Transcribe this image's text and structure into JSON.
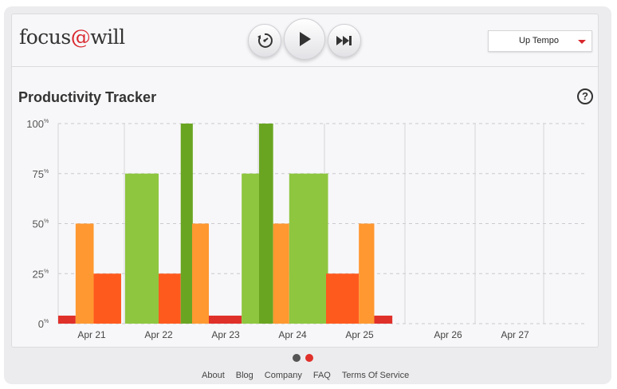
{
  "brand": {
    "logo_pre": "focus",
    "logo_at": "@",
    "logo_post": "will"
  },
  "player": {
    "controls": [
      {
        "name": "energy-level-button",
        "icon": "gauge-dial-icon"
      },
      {
        "name": "play-button",
        "icon": "play-icon"
      },
      {
        "name": "skip-button",
        "icon": "skip-forward-icon"
      }
    ],
    "tempo_value": "Up Tempo"
  },
  "tracker": {
    "title": "Productivity Tracker",
    "help_icon": "?"
  },
  "colors": {
    "red": "#e0302a",
    "orange_red": "#ff5a1e",
    "orange": "#ff9830",
    "light_green": "#8ec63f",
    "dark_green": "#6aa522",
    "dot_inactive": "#555555",
    "dot_active": "#e0302a"
  },
  "chart_data": {
    "type": "bar",
    "ylim": [
      0,
      100
    ],
    "y_ticks": [
      "0%",
      "25%",
      "50%",
      "75%",
      "100%"
    ],
    "categories": [
      "Apr 21",
      "Apr 22",
      "Apr 23",
      "Apr 24",
      "Apr 25",
      "Apr 26",
      "Apr 27"
    ],
    "series": [
      {
        "day": 0,
        "offset": 0.0,
        "width": 0.26,
        "value": 4,
        "color": "red"
      },
      {
        "day": 0,
        "offset": 0.26,
        "width": 0.27,
        "value": 50,
        "color": "orange"
      },
      {
        "day": 0,
        "offset": 0.53,
        "width": 0.41,
        "value": 25,
        "color": "orange_red"
      },
      {
        "day": 1,
        "offset": 0.0,
        "width": 0.5,
        "value": 75,
        "color": "light_green"
      },
      {
        "day": 1,
        "offset": 0.5,
        "width": 0.33,
        "value": 25,
        "color": "orange_red"
      },
      {
        "day": 1,
        "offset": 0.83,
        "width": 0.18,
        "value": 100,
        "color": "dark_green"
      },
      {
        "day": 2,
        "offset": 0.0,
        "width": 0.25,
        "value": 50,
        "color": "orange"
      },
      {
        "day": 2,
        "offset": 0.25,
        "width": 0.49,
        "value": 4,
        "color": "red"
      },
      {
        "day": 2,
        "offset": 0.74,
        "width": 0.26,
        "value": 75,
        "color": "light_green"
      },
      {
        "day": 3,
        "offset": 0.0,
        "width": 0.21,
        "value": 100,
        "color": "dark_green"
      },
      {
        "day": 3,
        "offset": 0.21,
        "width": 0.24,
        "value": 50,
        "color": "orange"
      },
      {
        "day": 3,
        "offset": 0.45,
        "width": 0.58,
        "value": 75,
        "color": "light_green"
      },
      {
        "day": 4,
        "offset": 0.0,
        "width": 0.49,
        "value": 25,
        "color": "orange_red"
      },
      {
        "day": 4,
        "offset": 0.49,
        "width": 0.23,
        "value": 50,
        "color": "orange"
      },
      {
        "day": 4,
        "offset": 0.72,
        "width": 0.27,
        "value": 4,
        "color": "red"
      }
    ]
  },
  "pager": {
    "count": 2,
    "active": 1
  },
  "footer": {
    "links": [
      "About",
      "Blog",
      "Company",
      "FAQ",
      "Terms Of Service"
    ]
  }
}
